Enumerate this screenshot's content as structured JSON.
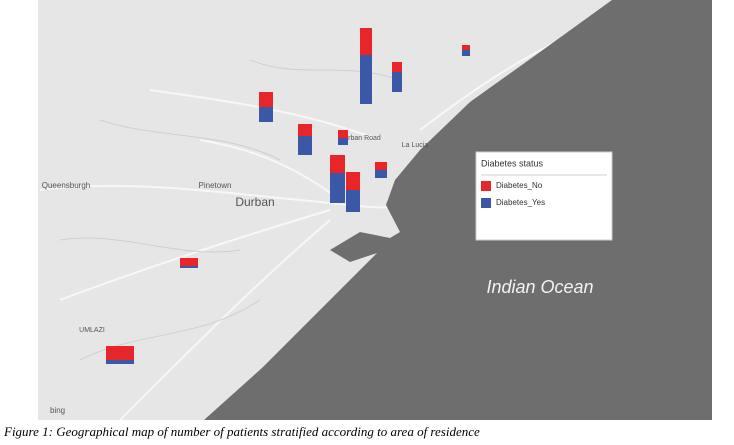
{
  "map": {
    "places": [
      "Indian Ocean",
      "Durban",
      "Pinetown",
      "Queensburgh",
      "UMLAZI",
      "La Lucia",
      "Durban Road",
      "bing"
    ],
    "legend": {
      "title": "Diabetes status",
      "entries": [
        {
          "name": "Diabetes_No",
          "color": "#e8262a"
        },
        {
          "name": "Diabetes_Yes",
          "color": "#3a57a8"
        }
      ]
    },
    "bars": [
      {
        "no": 27,
        "yes": 49
      },
      {
        "no": 10,
        "yes": 20
      },
      {
        "no": 5,
        "yes": 6
      },
      {
        "no": 15,
        "yes": 15
      },
      {
        "no": 12,
        "yes": 19
      },
      {
        "no": 8,
        "yes": 7
      },
      {
        "no": 18,
        "yes": 30
      },
      {
        "no": 18,
        "yes": 22
      },
      {
        "no": 8,
        "yes": 8
      },
      {
        "no": 8,
        "yes": 2
      },
      {
        "no": 14,
        "yes": 4
      }
    ]
  },
  "caption": "Figure 1: Geographical map of number of patients stratified according to area of residence"
}
